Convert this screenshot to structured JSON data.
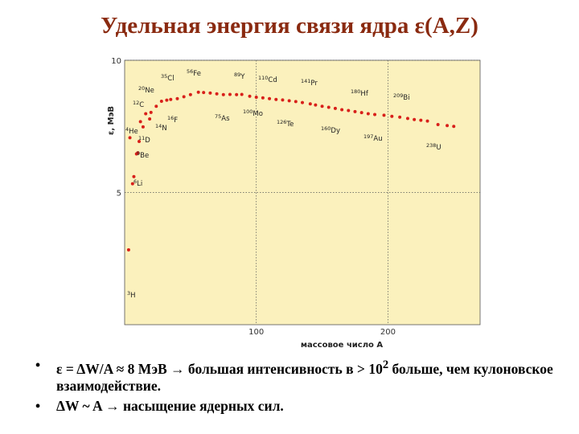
{
  "chart_data": {
    "type": "scatter",
    "title": "Удельная энергия связи ядра ε(A,Z)",
    "x_label": "массовое число А",
    "y_label": "ε, МэВ",
    "x": [
      3,
      4,
      6,
      7,
      9,
      10,
      11,
      12,
      14,
      16,
      19,
      20,
      24,
      28,
      32,
      35,
      40,
      45,
      50,
      56,
      60,
      65,
      70,
      75,
      80,
      85,
      89,
      95,
      100,
      105,
      110,
      115,
      120,
      125,
      130,
      135,
      141,
      145,
      150,
      155,
      160,
      165,
      170,
      175,
      180,
      185,
      190,
      197,
      203,
      209,
      215,
      220,
      225,
      230,
      238,
      245,
      250
    ],
    "values": [
      2.83,
      7.07,
      5.33,
      5.6,
      6.46,
      6.5,
      6.93,
      7.68,
      7.48,
      7.98,
      7.78,
      8.03,
      8.26,
      8.45,
      8.49,
      8.52,
      8.55,
      8.62,
      8.7,
      8.79,
      8.78,
      8.76,
      8.73,
      8.7,
      8.71,
      8.7,
      8.71,
      8.64,
      8.6,
      8.58,
      8.55,
      8.52,
      8.5,
      8.47,
      8.44,
      8.4,
      8.35,
      8.31,
      8.26,
      8.22,
      8.18,
      8.13,
      8.1,
      8.06,
      8.02,
      7.98,
      7.95,
      7.92,
      7.88,
      7.85,
      7.8,
      7.76,
      7.73,
      7.7,
      7.57,
      7.53,
      7.5
    ],
    "color": "#d8201a",
    "background": "#fbf1bd",
    "xlim": [
      0,
      270
    ],
    "ylim": [
      0,
      10
    ],
    "xticks": [
      100,
      200
    ],
    "yticks": [
      5,
      10
    ],
    "grid": true,
    "annotations": [
      {
        "mass": "3",
        "symbol": "H"
      },
      {
        "mass": "6",
        "symbol": "Li"
      },
      {
        "mass": "9",
        "symbol": "Be"
      },
      {
        "mass": "11",
        "symbol": "D"
      },
      {
        "mass": "4",
        "symbol": "He"
      },
      {
        "mass": "14",
        "symbol": "N"
      },
      {
        "mass": "16",
        "symbol": "F"
      },
      {
        "mass": "12",
        "symbol": "C"
      },
      {
        "mass": "20",
        "symbol": "Ne"
      },
      {
        "mass": "35",
        "symbol": "Cl"
      },
      {
        "mass": "56",
        "symbol": "Fe"
      },
      {
        "mass": "75",
        "symbol": "As"
      },
      {
        "mass": "89",
        "symbol": "Y"
      },
      {
        "mass": "100",
        "symbol": "Mo"
      },
      {
        "mass": "110",
        "symbol": "Cd"
      },
      {
        "mass": "126",
        "symbol": "Te"
      },
      {
        "mass": "141",
        "symbol": "Pr"
      },
      {
        "mass": "160",
        "symbol": "Dy"
      },
      {
        "mass": "180",
        "symbol": "Hf"
      },
      {
        "mass": "197",
        "symbol": "Au"
      },
      {
        "mass": "209",
        "symbol": "Bi"
      },
      {
        "mass": "238",
        "symbol": "U"
      }
    ]
  },
  "bullets": [
    [
      "ε = ΔW/A ≈ 8 МэВ → большая интенсивность в > 10",
      "2",
      " больше, чем кулоновское взаимодействие."
    ],
    [
      "ΔW ~ A → насыщение ядерных сил."
    ]
  ]
}
